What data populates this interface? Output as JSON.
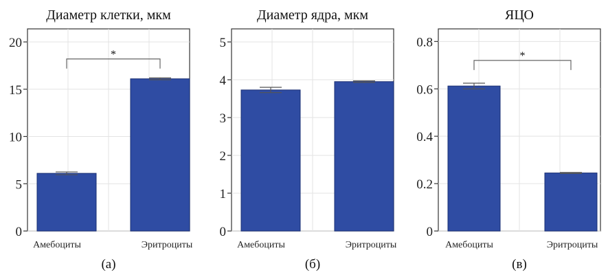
{
  "colors": {
    "bar": "#2f4ca3",
    "bar_edge": "#1a2f73",
    "grid": "#e3e3e3",
    "frame": "#333333",
    "error": "#555555"
  },
  "chart_data": [
    {
      "type": "bar",
      "title": "Диаметр клетки, мкм",
      "panel_label": "(а)",
      "categories": [
        "Амебоциты",
        "Эритроциты"
      ],
      "values": [
        6.1,
        16.1
      ],
      "errors": [
        0.15,
        0.1
      ],
      "ylim": [
        0,
        20.8
      ],
      "yticks": [
        0,
        5,
        10,
        15,
        20
      ],
      "ytick_labels": [
        "0",
        "5",
        "10",
        "15",
        "20"
      ],
      "grid": true,
      "significance": {
        "between": [
          0,
          1
        ],
        "label": "*",
        "y": 18.2
      }
    },
    {
      "type": "bar",
      "title": "Диаметр ядра, мкм",
      "panel_label": "(б)",
      "categories": [
        "Амебоциты",
        "Эритроциты"
      ],
      "values": [
        3.73,
        3.95
      ],
      "errors": [
        0.07,
        0.02
      ],
      "ylim": [
        0,
        5.2
      ],
      "yticks": [
        0,
        1,
        2,
        3,
        4,
        5
      ],
      "ytick_labels": [
        "0",
        "1",
        "2",
        "3",
        "4",
        "5"
      ],
      "grid": true
    },
    {
      "type": "bar",
      "title": "ЯЦО",
      "panel_label": "(в)",
      "categories": [
        "Амебоциты",
        "Эритроциты"
      ],
      "values": [
        0.612,
        0.245
      ],
      "errors": [
        0.012,
        0.002
      ],
      "ylim": [
        0,
        0.83
      ],
      "yticks": [
        0,
        0.2,
        0.4,
        0.6,
        0.8
      ],
      "ytick_labels": [
        "0",
        "0.2",
        "0.4",
        "0.6",
        "0.8"
      ],
      "grid": true,
      "significance": {
        "between": [
          0,
          1
        ],
        "label": "*",
        "y": 0.72
      }
    }
  ]
}
